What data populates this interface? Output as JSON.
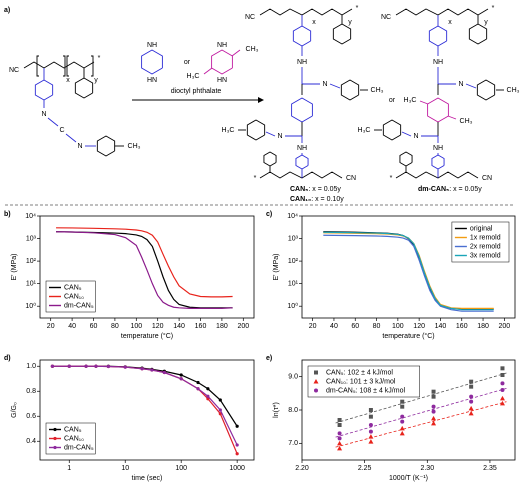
{
  "scheme": {
    "label": "a)",
    "nc": "NC",
    "cn": "CN",
    "n": "n",
    "x": "x",
    "y": "y",
    "star": "*",
    "n_atom": "N",
    "c_atom": "C",
    "ch3": "CH₃",
    "h3c": "H₃C",
    "nh": "NH",
    "hn": "HN",
    "or": "or",
    "solvent": "dioctyl phthalate",
    "products": [
      {
        "name": "CAN₅",
        "text": ": x = 0.05y"
      },
      {
        "name": "CAN₁₀",
        "text": ": x = 0.10y"
      },
      {
        "name": "dm-CAN₅",
        "text": ": x = 0.05y"
      }
    ]
  },
  "chart_data": [
    {
      "type": "line",
      "label": "b)",
      "x_label": "temperature (°C)",
      "y_label": "E' (MPa)",
      "yscale": "log",
      "legend": "lower left",
      "x": [
        25,
        40,
        60,
        80,
        90,
        100,
        105,
        110,
        115,
        120,
        125,
        130,
        135,
        140,
        150,
        160,
        170,
        180,
        190
      ],
      "xlim": [
        10,
        210
      ],
      "xticks": [
        20,
        40,
        60,
        80,
        100,
        120,
        140,
        160,
        180,
        200
      ],
      "ylim": [
        0.3,
        10000
      ],
      "yticks": [
        {
          "value": 1,
          "label": "10⁰"
        },
        {
          "value": 10,
          "label": "10¹"
        },
        {
          "value": 100,
          "label": "10²"
        },
        {
          "value": 1000,
          "label": "10³"
        },
        {
          "value": 10000,
          "label": "10⁴"
        }
      ],
      "series": [
        {
          "name": "CAN₅",
          "color": "#000000",
          "values": [
            2000,
            1950,
            1850,
            1750,
            1650,
            1450,
            1250,
            900,
            450,
            100,
            20,
            5,
            2,
            1.2,
            0.9,
            0.85,
            0.85,
            0.85,
            0.85
          ]
        },
        {
          "name": "CAN₁₀",
          "color": "#e8231b",
          "values": [
            3000,
            2950,
            2850,
            2700,
            2600,
            2400,
            2200,
            1900,
            1400,
            700,
            200,
            60,
            20,
            8,
            3.5,
            2.7,
            2.6,
            2.6,
            2.7
          ]
        },
        {
          "name": "dm-CAN₅",
          "color": "#8b1a8b",
          "values": [
            2000,
            1950,
            1800,
            1500,
            1100,
            500,
            150,
            40,
            10,
            3,
            1.5,
            1.1,
            0.9,
            0.85,
            0.8,
            0.8,
            0.8,
            0.8,
            0.85
          ]
        }
      ]
    },
    {
      "type": "line",
      "label": "c)",
      "x_label": "temperature (°C)",
      "y_label": "E' (MPa)",
      "yscale": "log",
      "legend": "upper right",
      "x": [
        30,
        40,
        60,
        80,
        90,
        100,
        105,
        110,
        115,
        120,
        125,
        130,
        135,
        140,
        150,
        160,
        170,
        180,
        190
      ],
      "xlim": [
        10,
        210
      ],
      "xticks": [
        20,
        40,
        60,
        80,
        100,
        120,
        140,
        160,
        180,
        200
      ],
      "ylim": [
        0.3,
        10000
      ],
      "yticks": [
        {
          "value": 1,
          "label": "10⁰"
        },
        {
          "value": 10,
          "label": "10¹"
        },
        {
          "value": 100,
          "label": "10²"
        },
        {
          "value": 1000,
          "label": "10³"
        },
        {
          "value": 10000,
          "label": "10⁴"
        }
      ],
      "series": [
        {
          "name": "original",
          "color": "#000000",
          "values": [
            2000,
            1980,
            1900,
            1800,
            1720,
            1550,
            1350,
            1000,
            500,
            120,
            25,
            6,
            2,
            1.1,
            0.8,
            0.75,
            0.75,
            0.75,
            0.75
          ]
        },
        {
          "name": "1x remold",
          "color": "#f39c12",
          "values": [
            1800,
            1780,
            1720,
            1650,
            1580,
            1450,
            1300,
            1050,
            600,
            180,
            35,
            8,
            2.5,
            1.2,
            0.85,
            0.8,
            0.8,
            0.8,
            0.8
          ]
        },
        {
          "name": "2x remold",
          "color": "#4a6fd1",
          "values": [
            1400,
            1380,
            1350,
            1300,
            1250,
            1150,
            1050,
            850,
            450,
            110,
            22,
            5,
            1.8,
            1,
            0.7,
            0.6,
            0.6,
            0.6,
            0.6
          ]
        },
        {
          "name": "3x remold",
          "color": "#1aa5b8",
          "values": [
            1900,
            1880,
            1820,
            1750,
            1680,
            1520,
            1350,
            1050,
            580,
            160,
            30,
            7,
            2.2,
            1.1,
            0.8,
            0.7,
            0.7,
            0.7,
            0.7
          ]
        }
      ]
    },
    {
      "type": "line",
      "markers": true,
      "label": "d)",
      "x_label": "time (sec)",
      "y_label": "G/G₀",
      "xscale": "log",
      "legend": "lower left",
      "x": [
        0.5,
        1,
        2,
        3,
        5,
        10,
        20,
        30,
        50,
        100,
        200,
        300,
        500,
        1000
      ],
      "xlim": [
        0.3,
        2000
      ],
      "xticks": [
        1,
        10,
        100,
        1000
      ],
      "ylim": [
        0.25,
        1.05
      ],
      "yticks": [
        0.4,
        0.6,
        0.8,
        {
          "value": 1,
          "label": "1.0"
        }
      ],
      "series": [
        {
          "name": "CAN₅",
          "color": "#000000",
          "values": [
            1,
            1,
            1,
            1,
            1,
            0.995,
            0.985,
            0.975,
            0.96,
            0.93,
            0.87,
            0.82,
            0.73,
            0.52
          ]
        },
        {
          "name": "CAN₁₀",
          "color": "#e0202b",
          "values": [
            1,
            1,
            1,
            1,
            0.998,
            0.993,
            0.98,
            0.97,
            0.95,
            0.9,
            0.82,
            0.74,
            0.62,
            0.3
          ]
        },
        {
          "name": "dm-CAN₅",
          "color": "#8e2a9e",
          "values": [
            1,
            1,
            1,
            1,
            0.998,
            0.993,
            0.98,
            0.97,
            0.95,
            0.9,
            0.82,
            0.76,
            0.65,
            0.37
          ]
        }
      ]
    },
    {
      "type": "scatter",
      "trendline": true,
      "label": "e)",
      "x_label": "1000/T (K⁻¹)",
      "y_label": "ln(τ*)",
      "legend": "upper left",
      "x": [
        2.23,
        2.23,
        2.255,
        2.255,
        2.28,
        2.28,
        2.305,
        2.305,
        2.335,
        2.335,
        2.36,
        2.36
      ],
      "xlim": [
        2.2,
        2.37
      ],
      "xticks": [
        {
          "value": 2.2,
          "label": "2.20"
        },
        2.25,
        {
          "value": 2.3,
          "label": "2.30"
        },
        2.35
      ],
      "ylim": [
        6.5,
        9.5
      ],
      "yticks": [
        {
          "value": 7,
          "label": "7.0"
        },
        {
          "value": 8,
          "label": "8.0"
        },
        {
          "value": 9,
          "label": "9.0"
        }
      ],
      "series": [
        {
          "name": "CAN₅: 102 ± 4 kJ/mol",
          "color": "#555555",
          "marker": "square",
          "values": [
            7.55,
            7.7,
            7.8,
            8.0,
            8.1,
            8.25,
            8.4,
            8.55,
            8.7,
            8.85,
            9.05,
            9.25
          ]
        },
        {
          "name": "CAN₁₀: 101 ± 3 kJ/mol",
          "color": "#e8231b",
          "marker": "triangle",
          "values": [
            6.85,
            7.0,
            7.05,
            7.2,
            7.3,
            7.45,
            7.6,
            7.75,
            7.9,
            8.05,
            8.2,
            8.35
          ]
        },
        {
          "name": "dm-CAN₅: 108 ± 4 kJ/mol",
          "color": "#8e2a9e",
          "marker": "circle",
          "values": [
            7.15,
            7.3,
            7.35,
            7.55,
            7.65,
            7.8,
            7.95,
            8.1,
            8.25,
            8.4,
            8.6,
            8.8
          ]
        }
      ]
    }
  ]
}
